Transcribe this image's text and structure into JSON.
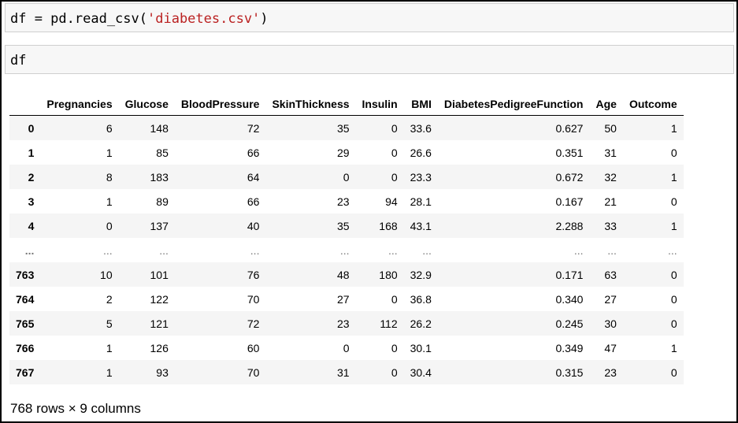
{
  "cells": [
    {
      "code_prefix": "df = pd.read_csv(",
      "code_string": "'diabetes.csv'",
      "code_suffix": ")"
    },
    {
      "code": "df"
    }
  ],
  "dataframe": {
    "columns": [
      "",
      "Pregnancies",
      "Glucose",
      "BloodPressure",
      "SkinThickness",
      "Insulin",
      "BMI",
      "DiabetesPedigreeFunction",
      "Age",
      "Outcome"
    ],
    "rows": [
      [
        "0",
        "6",
        "148",
        "72",
        "35",
        "0",
        "33.6",
        "0.627",
        "50",
        "1"
      ],
      [
        "1",
        "1",
        "85",
        "66",
        "29",
        "0",
        "26.6",
        "0.351",
        "31",
        "0"
      ],
      [
        "2",
        "8",
        "183",
        "64",
        "0",
        "0",
        "23.3",
        "0.672",
        "32",
        "1"
      ],
      [
        "3",
        "1",
        "89",
        "66",
        "23",
        "94",
        "28.1",
        "0.167",
        "21",
        "0"
      ],
      [
        "4",
        "0",
        "137",
        "40",
        "35",
        "168",
        "43.1",
        "2.288",
        "33",
        "1"
      ],
      [
        "...",
        "...",
        "...",
        "...",
        "...",
        "...",
        "...",
        "...",
        "...",
        "..."
      ],
      [
        "763",
        "10",
        "101",
        "76",
        "48",
        "180",
        "32.9",
        "0.171",
        "63",
        "0"
      ],
      [
        "764",
        "2",
        "122",
        "70",
        "27",
        "0",
        "36.8",
        "0.340",
        "27",
        "0"
      ],
      [
        "765",
        "5",
        "121",
        "72",
        "23",
        "112",
        "26.2",
        "0.245",
        "30",
        "0"
      ],
      [
        "766",
        "1",
        "126",
        "60",
        "0",
        "0",
        "30.1",
        "0.349",
        "47",
        "1"
      ],
      [
        "767",
        "1",
        "93",
        "70",
        "31",
        "0",
        "30.4",
        "0.315",
        "23",
        "0"
      ]
    ],
    "shape_text": "768 rows × 9 columns"
  }
}
